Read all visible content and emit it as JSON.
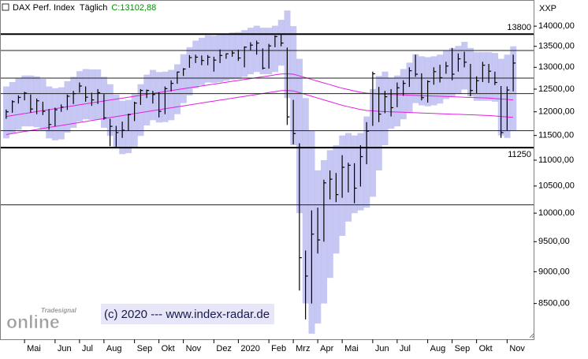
{
  "chart_data": {
    "type": "ohlc",
    "title": "DAX Perf. Index",
    "interval": "Täglich",
    "last_label": "C:13102,88",
    "axis_unit": "XXP",
    "copyright": "(c) 2020 --- www.index-radar.de",
    "logo": [
      "Tradesignal",
      "online"
    ],
    "log_scale": true,
    "grid": false,
    "color": "#000000",
    "categories": [
      null,
      null,
      null,
      "Mai",
      null,
      null,
      null,
      null,
      "Jun",
      null,
      null,
      null,
      "Jul",
      null,
      null,
      null,
      "Aug",
      null,
      null,
      null,
      null,
      "Sep",
      null,
      null,
      null,
      "Okt",
      null,
      null,
      null,
      "Nov",
      null,
      null,
      null,
      null,
      "Dez",
      null,
      null,
      null,
      "2020",
      null,
      null,
      null,
      null,
      "Feb",
      null,
      null,
      null,
      "Mrz",
      null,
      null,
      null,
      "Apr",
      null,
      null,
      null,
      "Mai",
      null,
      null,
      null,
      null,
      "Jun",
      null,
      null,
      null,
      "Jul",
      null,
      null,
      null,
      null,
      "Aug",
      null,
      null,
      null,
      "Sep",
      null,
      null,
      null,
      "Okt",
      null,
      null,
      null,
      null,
      "Nov",
      null
    ],
    "high": [
      12050,
      12250,
      12360,
      12440,
      12380,
      12290,
      12220,
      12060,
      12090,
      12160,
      12380,
      12460,
      12650,
      12560,
      12420,
      12500,
      12390,
      11850,
      11700,
      11790,
      11960,
      12220,
      12500,
      12490,
      12460,
      12430,
      12560,
      12700,
      12900,
      12980,
      13290,
      13300,
      13280,
      13290,
      13250,
      13425,
      13330,
      13400,
      13420,
      13500,
      13600,
      13640,
      13450,
      13560,
      13770,
      13800,
      13470,
      12260,
      11340,
      9350,
      10050,
      10100,
      10620,
      10800,
      10750,
      11100,
      10950,
      10940,
      11300,
      11780,
      12900,
      12550,
      12460,
      12500,
      12650,
      12700,
      13000,
      13300,
      12860,
      12700,
      13000,
      13060,
      13130,
      13460,
      13330,
      13370,
      13080,
      12790,
      13130,
      13080,
      12900,
      12570,
      12560,
      13300
    ],
    "low": [
      11850,
      11980,
      12180,
      12250,
      11980,
      11950,
      11930,
      11620,
      11690,
      12000,
      12040,
      12170,
      12420,
      12220,
      12130,
      12170,
      11830,
      11280,
      11270,
      11450,
      11600,
      11800,
      12150,
      12300,
      12180,
      11880,
      11950,
      12450,
      12620,
      12800,
      12990,
      13100,
      13050,
      13050,
      12900,
      13100,
      13200,
      13250,
      13150,
      13000,
      13400,
      13300,
      12950,
      12970,
      13480,
      13500,
      11720,
      11320,
      8700,
      8260,
      8500,
      9300,
      9500,
      10250,
      10200,
      10280,
      10380,
      10180,
      10490,
      10920,
      11700,
      11780,
      11970,
      11900,
      12100,
      12350,
      12550,
      12780,
      12250,
      12200,
      12600,
      12650,
      12850,
      12700,
      12900,
      13000,
      12340,
      12410,
      12660,
      12640,
      12590,
      11450,
      11600,
      12450
    ],
    "close": [
      12000,
      12220,
      12315,
      12410,
      12060,
      12240,
      12010,
      11730,
      12045,
      12100,
      12340,
      12400,
      12570,
      12320,
      12260,
      12420,
      11870,
      11690,
      11560,
      11610,
      11940,
      12190,
      12470,
      12470,
      12380,
      12010,
      12510,
      12630,
      12890,
      12960,
      13230,
      13240,
      13160,
      13240,
      13170,
      13280,
      13320,
      13340,
      13220,
      13480,
      13530,
      13580,
      12980,
      13510,
      13740,
      13580,
      11890,
      11540,
      9230,
      8930,
      9630,
      9530,
      10560,
      10630,
      10340,
      10860,
      10900,
      10460,
      11070,
      11590,
      12850,
      11950,
      12330,
      12090,
      12530,
      12630,
      12920,
      12840,
      12310,
      12670,
      12900,
      12760,
      13030,
      12840,
      13200,
      13120,
      12470,
      12690,
      13050,
      12910,
      12650,
      11560,
      12480,
      13100
    ],
    "band_color": "#b4b4f0",
    "band_upper": [
      12560,
      12660,
      12740,
      12810,
      12810,
      12790,
      12730,
      12560,
      12520,
      12540,
      12680,
      12780,
      12910,
      12960,
      12950,
      12950,
      12780,
      12610,
      12380,
      12240,
      12260,
      12390,
      12610,
      12830,
      12940,
      12890,
      12900,
      12940,
      13070,
      13310,
      13480,
      13640,
      13710,
      13770,
      13760,
      13780,
      13810,
      13840,
      13850,
      13900,
      13960,
      14010,
      13960,
      13960,
      14010,
      14160,
      14400,
      14000,
      13200,
      12300,
      11600,
      10800,
      11000,
      11200,
      11300,
      11500,
      11550,
      11500,
      11550,
      11900,
      12500,
      12800,
      12900,
      12760,
      12810,
      12960,
      13110,
      13310,
      13260,
      13240,
      13260,
      13300,
      13400,
      13460,
      13510,
      13610,
      13460,
      13360,
      13360,
      13360,
      13340,
      13200,
      13300,
      13500
    ],
    "band_lower": [
      11440,
      11540,
      11620,
      11690,
      11690,
      11670,
      11610,
      11440,
      11400,
      11420,
      11560,
      11660,
      11790,
      11840,
      11830,
      11830,
      11660,
      11490,
      11260,
      11120,
      11140,
      11270,
      11490,
      11710,
      11820,
      11770,
      11780,
      11820,
      11950,
      12190,
      12360,
      12520,
      12590,
      12650,
      12640,
      12660,
      12690,
      12720,
      12730,
      12780,
      12840,
      12890,
      12840,
      12840,
      12890,
      13040,
      12300,
      11300,
      10000,
      8500,
      8050,
      8200,
      8500,
      8900,
      9300,
      9600,
      9850,
      10000,
      10050,
      10100,
      10300,
      10800,
      11300,
      11640,
      11690,
      11840,
      11990,
      12190,
      12140,
      12120,
      12140,
      12180,
      12280,
      12340,
      12390,
      12490,
      12340,
      12240,
      12240,
      12240,
      12220,
      11500,
      11450,
      11600
    ],
    "envelope_color": "#e020e0",
    "envelope_upper": [
      11900,
      11921,
      11942,
      11963,
      11984,
      12005,
      12026,
      12047,
      12068,
      12089,
      12110,
      12131,
      12152,
      12173,
      12194,
      12215,
      12236,
      12257,
      12278,
      12299,
      12320,
      12341,
      12362,
      12383,
      12404,
      12425,
      12446,
      12467,
      12488,
      12509,
      12530,
      12551,
      12572,
      12593,
      12614,
      12635,
      12656,
      12677,
      12698,
      12719,
      12740,
      12761,
      12782,
      12803,
      12824,
      12845,
      12850,
      12840,
      12800,
      12760,
      12720,
      12680,
      12640,
      12600,
      12560,
      12520,
      12490,
      12460,
      12430,
      12410,
      12400,
      12390,
      12385,
      12380,
      12375,
      12370,
      12365,
      12360,
      12355,
      12350,
      12345,
      12340,
      12335,
      12330,
      12325,
      12320,
      12315,
      12310,
      12305,
      12300,
      12290,
      12280,
      12270,
      12260
    ],
    "envelope_lower": [
      11520,
      11541,
      11562,
      11583,
      11604,
      11625,
      11646,
      11667,
      11688,
      11709,
      11730,
      11751,
      11772,
      11793,
      11814,
      11835,
      11856,
      11877,
      11898,
      11919,
      11940,
      11961,
      11982,
      12003,
      12024,
      12045,
      12066,
      12087,
      12108,
      12129,
      12150,
      12171,
      12192,
      12213,
      12234,
      12255,
      12276,
      12297,
      12318,
      12339,
      12360,
      12381,
      12402,
      12423,
      12444,
      12465,
      12470,
      12460,
      12420,
      12380,
      12340,
      12300,
      12260,
      12220,
      12180,
      12140,
      12110,
      12080,
      12050,
      12030,
      12020,
      12010,
      12005,
      12000,
      11995,
      11990,
      11985,
      11980,
      11975,
      11970,
      11965,
      11960,
      11955,
      11950,
      11945,
      11940,
      11935,
      11930,
      11925,
      11920,
      11910,
      11900,
      11890,
      11880
    ],
    "levels": [
      13800,
      11250
    ],
    "lines": [
      13400,
      12750,
      12400,
      11600,
      10150
    ],
    "ylim": [
      7970,
      14570
    ],
    "yticks": [
      {
        "value": 14000,
        "label": "14000,00"
      },
      {
        "value": 13500,
        "label": "13500,00"
      },
      {
        "value": 13000,
        "label": "13000,00"
      },
      {
        "value": 12500,
        "label": "12500,00"
      },
      {
        "value": 12000,
        "label": "12000,00"
      },
      {
        "value": 11500,
        "label": "11500,00"
      },
      {
        "value": 11000,
        "label": "11000,00"
      },
      {
        "value": 10500,
        "label": "10500,00"
      },
      {
        "value": 10000,
        "label": "10000,00"
      },
      {
        "value": 9500,
        "label": "9500,00"
      },
      {
        "value": 9000,
        "label": "9000,00"
      },
      {
        "value": 8500,
        "label": "8500,00"
      }
    ]
  }
}
